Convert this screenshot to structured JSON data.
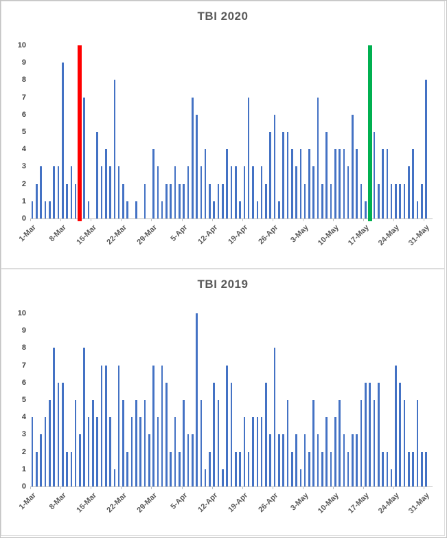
{
  "window": {
    "bg": "#ffffff",
    "frame_border": "#c3c3c3",
    "panel_border": "#dcdcdc",
    "axis_color": "#bfbfbf",
    "axis_text_color": "#404040",
    "title_color": "#595959"
  },
  "chart_data": [
    {
      "type": "bar",
      "title": "TBI 2020",
      "xlabel": "",
      "ylabel": "",
      "ylim": [
        0,
        10
      ],
      "y_ticks": [
        0,
        1,
        2,
        3,
        4,
        5,
        6,
        7,
        8,
        9,
        10
      ],
      "grid": false,
      "legend": false,
      "x_start": "1-Mar",
      "x_end": "31-May",
      "tick_labels": [
        "1-Mar",
        "8-Mar",
        "15-Mar",
        "22-Mar",
        "29-Mar",
        "5-Apr",
        "12-Apr",
        "19-Apr",
        "26-Apr",
        "3-May",
        "10-May",
        "17-May",
        "24-May",
        "31-May"
      ],
      "bar_color": "#4472C4",
      "values": [
        1,
        2,
        3,
        1,
        1,
        3,
        3,
        9,
        2,
        3,
        2,
        10,
        7,
        1,
        0,
        5,
        3,
        4,
        3,
        8,
        3,
        2,
        1,
        0,
        1,
        0,
        2,
        0,
        4,
        3,
        1,
        2,
        2,
        3,
        2,
        2,
        3,
        7,
        6,
        3,
        4,
        2,
        1,
        2,
        2,
        4,
        3,
        3,
        1,
        3,
        7,
        3,
        1,
        3,
        2,
        5,
        6,
        1,
        5,
        5,
        4,
        3,
        4,
        2,
        4,
        3,
        7,
        2,
        5,
        2,
        4,
        4,
        4,
        3,
        6,
        4,
        2,
        1,
        10,
        5,
        2,
        4,
        4,
        2,
        2,
        2,
        2,
        3,
        4,
        1,
        2,
        8
      ],
      "highlights": [
        {
          "index": 11,
          "color": "#FF0000",
          "name": "red-marker-bar"
        },
        {
          "index": 78,
          "color": "#00B050",
          "name": "green-marker-bar"
        }
      ]
    },
    {
      "type": "bar",
      "title": "TBI 2019",
      "xlabel": "",
      "ylabel": "",
      "ylim": [
        0,
        10
      ],
      "y_ticks": [
        0,
        1,
        2,
        3,
        4,
        5,
        6,
        7,
        8,
        9,
        10
      ],
      "grid": false,
      "legend": false,
      "x_start": "1-Mar",
      "x_end": "31-May",
      "tick_labels": [
        "1-Mar",
        "8-Mar",
        "15-Mar",
        "22-Mar",
        "29-Mar",
        "5-Apr",
        "12-Apr",
        "19-Apr",
        "26-Apr",
        "3-May",
        "10-May",
        "17-May",
        "24-May",
        "31-May"
      ],
      "bar_color": "#4472C4",
      "values": [
        4,
        2,
        3,
        4,
        5,
        8,
        6,
        6,
        2,
        2,
        5,
        3,
        8,
        4,
        5,
        4,
        7,
        7,
        4,
        1,
        7,
        5,
        2,
        4,
        5,
        4,
        5,
        3,
        7,
        4,
        7,
        6,
        2,
        4,
        2,
        5,
        3,
        3,
        10,
        5,
        1,
        2,
        6,
        5,
        1,
        7,
        6,
        2,
        2,
        4,
        2,
        4,
        4,
        4,
        6,
        3,
        8,
        3,
        3,
        5,
        2,
        3,
        1,
        3,
        2,
        5,
        3,
        2,
        4,
        2,
        4,
        5,
        3,
        2,
        3,
        3,
        5,
        6,
        6,
        5,
        6,
        2,
        2,
        1,
        7,
        6,
        5,
        2,
        2,
        5,
        2,
        2
      ],
      "highlights": []
    }
  ]
}
